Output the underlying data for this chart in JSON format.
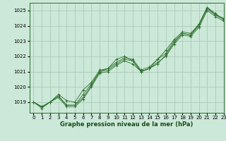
{
  "title": "Graphe pression niveau de la mer (hPa)",
  "bg_color": "#cce8d8",
  "grid_color": "#aacbb8",
  "line_color": "#2d6e2d",
  "marker_color": "#2d6e2d",
  "xlim": [
    -0.5,
    23
  ],
  "ylim": [
    1018.3,
    1025.5
  ],
  "yticks": [
    1019,
    1020,
    1021,
    1022,
    1023,
    1024,
    1025
  ],
  "xticks": [
    0,
    1,
    2,
    3,
    4,
    5,
    6,
    7,
    8,
    9,
    10,
    11,
    12,
    13,
    14,
    15,
    16,
    17,
    18,
    19,
    20,
    21,
    22,
    23
  ],
  "series": [
    [
      1019.0,
      1018.7,
      1019.0,
      1019.4,
      1018.8,
      1018.8,
      1019.3,
      1020.1,
      1021.0,
      1021.1,
      1021.5,
      1021.8,
      1021.7,
      1021.0,
      1021.2,
      1021.5,
      1022.1,
      1022.9,
      1023.5,
      1023.4,
      1024.0,
      1025.1,
      1024.7,
      1024.5
    ],
    [
      1019.0,
      1018.7,
      1019.0,
      1019.4,
      1018.8,
      1018.8,
      1019.5,
      1020.2,
      1021.0,
      1021.2,
      1021.6,
      1021.9,
      1021.8,
      1021.1,
      1021.3,
      1021.8,
      1022.2,
      1023.0,
      1023.5,
      1023.4,
      1024.1,
      1025.2,
      1024.7,
      1024.4
    ],
    [
      1019.0,
      1018.7,
      1019.0,
      1019.5,
      1019.1,
      1019.0,
      1019.8,
      1020.3,
      1021.1,
      1021.2,
      1021.8,
      1022.0,
      1021.7,
      1021.0,
      1021.2,
      1021.8,
      1022.4,
      1023.1,
      1023.6,
      1023.5,
      1024.1,
      1025.2,
      1024.8,
      1024.4
    ],
    [
      1019.0,
      1018.6,
      1019.0,
      1019.3,
      1018.7,
      1018.7,
      1019.2,
      1020.0,
      1020.9,
      1021.0,
      1021.4,
      1021.7,
      1021.5,
      1021.0,
      1021.2,
      1021.6,
      1022.0,
      1022.8,
      1023.4,
      1023.3,
      1023.9,
      1025.0,
      1024.6,
      1024.3
    ]
  ],
  "title_fontsize": 6.0,
  "tick_fontsize": 5.0
}
